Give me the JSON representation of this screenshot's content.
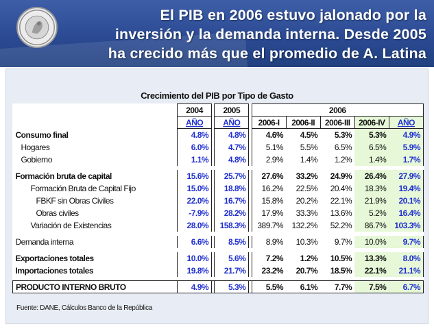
{
  "header": {
    "title_lines": [
      "El PIB en 2006 estuvo jalonado por la",
      "inversión y la demanda interna. Desde 2005",
      "ha crecido más que el promedio de A. Latina"
    ],
    "seal_text": "BANCO DE LA REPÚBLICA COLOMBIA"
  },
  "table": {
    "title": "Crecimiento del PIB por Tipo de Gasto",
    "year_headers": [
      "2004",
      "2005",
      "2006"
    ],
    "sub_headers": [
      "AÑO",
      "AÑO",
      "2006-I",
      "2006-II",
      "2006-III",
      "2006-IV",
      "AÑO"
    ],
    "rows": [
      {
        "label": "Consumo final",
        "values": [
          "4.8%",
          "4.8%",
          "4.6%",
          "4.5%",
          "5.3%",
          "5.3%",
          "4.9%"
        ]
      },
      {
        "label": "Hogares",
        "values": [
          "6.0%",
          "4.7%",
          "5.1%",
          "5.5%",
          "6.5%",
          "6.5%",
          "5.9%"
        ]
      },
      {
        "label": "Gobierno",
        "values": [
          "1.1%",
          "4.8%",
          "2.9%",
          "1.4%",
          "1.2%",
          "1.4%",
          "1.7%"
        ]
      },
      {
        "label": "Formación bruta de capital",
        "values": [
          "15.6%",
          "25.7%",
          "27.6%",
          "33.2%",
          "24.9%",
          "26.4%",
          "27.9%"
        ]
      },
      {
        "label": "Formación Bruta de Capital Fijo",
        "values": [
          "15.0%",
          "18.8%",
          "16.2%",
          "22.5%",
          "20.4%",
          "18.3%",
          "19.4%"
        ]
      },
      {
        "label": "FBKF sin Obras Civiles",
        "values": [
          "22.0%",
          "16.7%",
          "15.8%",
          "20.2%",
          "22.1%",
          "21.9%",
          "20.1%"
        ]
      },
      {
        "label": "Obras civiles",
        "values": [
          "-7.9%",
          "28.2%",
          "17.9%",
          "33.3%",
          "13.6%",
          "5.2%",
          "16.4%"
        ]
      },
      {
        "label": "Variación de Existencias",
        "values": [
          "28.0%",
          "158.3%",
          "389.7%",
          "132.2%",
          "52.2%",
          "86.7%",
          "103.3%"
        ]
      },
      {
        "label": "Demanda interna",
        "values": [
          "6.6%",
          "8.5%",
          "8.9%",
          "10.3%",
          "9.7%",
          "10.0%",
          "9.7%"
        ]
      },
      {
        "label": "Exportaciones totales",
        "values": [
          "10.0%",
          "5.6%",
          "7.2%",
          "1.2%",
          "10.5%",
          "13.3%",
          "8.0%"
        ]
      },
      {
        "label": "Importaciones totales",
        "values": [
          "19.8%",
          "21.7%",
          "23.2%",
          "20.7%",
          "18.5%",
          "22.1%",
          "21.1%"
        ]
      },
      {
        "label": "PRODUCTO INTERNO BRUTO",
        "values": [
          "4.9%",
          "5.3%",
          "5.5%",
          "6.1%",
          "7.7%",
          "7.5%",
          "6.7%"
        ]
      }
    ],
    "source": "Fuente: DANE, Cálculos Banco de la República"
  },
  "colors": {
    "banner": "#2b4a93",
    "value_blue": "#1f2fd0",
    "highlight_green": "#e6f8d8"
  }
}
